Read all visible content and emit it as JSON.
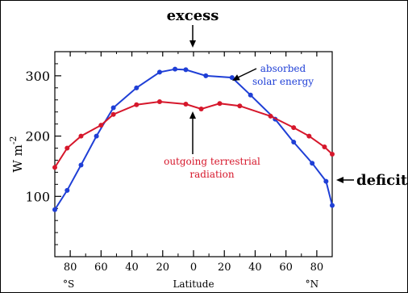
{
  "chart_data": {
    "type": "line",
    "title": "",
    "xlabel": "Latitude",
    "ylabel": "W m",
    "ylabel_superscript": "-2",
    "xlim": [
      -90,
      90
    ],
    "ylim": [
      0,
      340
    ],
    "yticks": [
      100,
      200,
      300
    ],
    "xticks": [
      {
        "value": -80,
        "label": "80"
      },
      {
        "value": -60,
        "label": "60"
      },
      {
        "value": -40,
        "label": "40"
      },
      {
        "value": -20,
        "label": "20"
      },
      {
        "value": 0,
        "label": "0"
      },
      {
        "value": 20,
        "label": "20"
      },
      {
        "value": 40,
        "label": "40"
      },
      {
        "value": 60,
        "label": "60"
      },
      {
        "value": 80,
        "label": "80"
      }
    ],
    "hemisphere_labels": {
      "south": "°S",
      "north": "°N"
    },
    "grid": false,
    "series": [
      {
        "name": "absorbed solar energy",
        "label_lines": [
          "absorbed",
          "solar energy"
        ],
        "color": "#1f3fd6",
        "points": [
          [
            -90,
            78
          ],
          [
            -82,
            110
          ],
          [
            -73,
            152
          ],
          [
            -63,
            200
          ],
          [
            -52,
            247
          ],
          [
            -37,
            280
          ],
          [
            -22,
            306
          ],
          [
            -12,
            311
          ],
          [
            -5,
            310
          ],
          [
            8,
            300
          ],
          [
            25,
            297
          ],
          [
            37,
            268
          ],
          [
            53,
            228
          ],
          [
            65,
            190
          ],
          [
            77,
            155
          ],
          [
            86,
            125
          ],
          [
            90,
            85
          ]
        ]
      },
      {
        "name": "outgoing terrestrial radiation",
        "label_lines": [
          "outgoing terrestrial",
          "radiation"
        ],
        "color": "#d6172b",
        "points": [
          [
            -90,
            148
          ],
          [
            -82,
            180
          ],
          [
            -73,
            200
          ],
          [
            -60,
            218
          ],
          [
            -52,
            236
          ],
          [
            -37,
            252
          ],
          [
            -22,
            257
          ],
          [
            -5,
            253
          ],
          [
            5,
            245
          ],
          [
            17,
            254
          ],
          [
            30,
            250
          ],
          [
            50,
            233
          ],
          [
            65,
            214
          ],
          [
            75,
            200
          ],
          [
            85,
            182
          ],
          [
            90,
            170
          ]
        ]
      }
    ],
    "annotations": {
      "excess": "excess",
      "deficit": "deficit"
    }
  }
}
